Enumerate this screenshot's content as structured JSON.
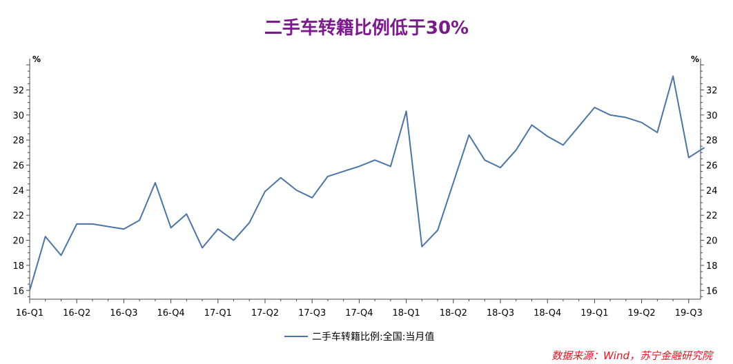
{
  "title": "二手车转籍比例低于30%",
  "source": "数据来源：Wind，苏宁金融研究院",
  "colors": {
    "title": "#7a1a8c",
    "line": "#4a74a8",
    "axis": "#444444",
    "source": "#e8141e"
  },
  "chart_data": {
    "type": "line",
    "ylabel_left": "%",
    "ylabel_right": "%",
    "ylim": [
      15.3,
      34.5
    ],
    "yticks": [
      16,
      18,
      20,
      22,
      24,
      26,
      28,
      30,
      32
    ],
    "grid": false,
    "legend_position": "bottom",
    "x_tick_labels": [
      "16-Q1",
      "16-Q2",
      "16-Q3",
      "16-Q4",
      "17-Q1",
      "17-Q2",
      "17-Q3",
      "17-Q4",
      "18-Q1",
      "18-Q2",
      "18-Q3",
      "18-Q4",
      "19-Q1",
      "19-Q2",
      "19-Q3"
    ],
    "series": [
      {
        "name": "二手车转籍比例:全国:当月值",
        "x": [
          "2016-01",
          "2016-02",
          "2016-03",
          "2016-04",
          "2016-05",
          "2016-06",
          "2016-07",
          "2016-08",
          "2016-09",
          "2016-10",
          "2016-11",
          "2016-12",
          "2017-01",
          "2017-02",
          "2017-03",
          "2017-04",
          "2017-05",
          "2017-06",
          "2017-07",
          "2017-08",
          "2017-09",
          "2017-10",
          "2017-11",
          "2017-12",
          "2018-01",
          "2018-02",
          "2018-03",
          "2018-04",
          "2018-05",
          "2018-06",
          "2018-07",
          "2018-08",
          "2018-09",
          "2018-10",
          "2018-11",
          "2018-12",
          "2019-01",
          "2019-02",
          "2019-03",
          "2019-04",
          "2019-05",
          "2019-06",
          "2019-07",
          "2019-08"
        ],
        "values": [
          16.0,
          20.3,
          18.8,
          21.3,
          21.3,
          21.1,
          20.9,
          21.6,
          24.6,
          21.0,
          22.1,
          19.4,
          20.9,
          20.0,
          21.4,
          23.9,
          25.0,
          24.0,
          23.4,
          25.1,
          25.5,
          25.9,
          26.4,
          25.9,
          30.3,
          19.5,
          20.8,
          24.6,
          28.4,
          26.4,
          25.8,
          27.2,
          29.2,
          28.3,
          27.6,
          29.1,
          30.6,
          30.0,
          29.8,
          29.4,
          28.6,
          33.1,
          26.6,
          27.4
        ]
      }
    ]
  }
}
